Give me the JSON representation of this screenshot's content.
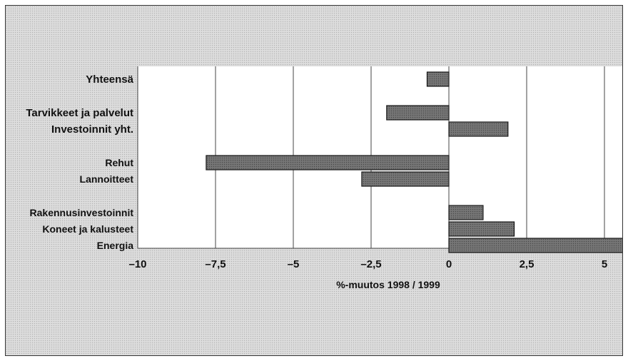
{
  "chart_data": {
    "type": "bar",
    "orientation": "horizontal",
    "title": "",
    "xlabel": "%-muutos 1998 / 1999",
    "ylabel": "",
    "xlim": [
      -10,
      6
    ],
    "xticks": [
      -10,
      -7.5,
      -5,
      -2.5,
      0,
      2.5,
      5
    ],
    "xtick_labels": [
      "–10",
      "–7,5",
      "–5",
      "–2,5",
      "0",
      "2,5",
      "5"
    ],
    "grid": "vertical",
    "bar_color": "#6e6e6e",
    "categories": [
      {
        "label": "Yhteensä",
        "value": -0.7,
        "group": 0,
        "bold": true
      },
      {
        "label": "Tarvikkeet ja palvelut",
        "value": -2.0,
        "group": 1,
        "bold": true
      },
      {
        "label": "Investoinnit yht.",
        "value": 1.9,
        "group": 1,
        "bold": true
      },
      {
        "label": "Rehut",
        "value": -7.8,
        "group": 2,
        "bold": false
      },
      {
        "label": "Lannoitteet",
        "value": -2.8,
        "group": 2,
        "bold": false
      },
      {
        "label": "Rakennusinvestoinnit",
        "value": 1.1,
        "group": 3,
        "bold": false
      },
      {
        "label": "Koneet ja kalusteet",
        "value": 2.1,
        "group": 3,
        "bold": false
      },
      {
        "label": "Energia",
        "value": 5.6,
        "group": 3,
        "bold": false
      }
    ]
  }
}
